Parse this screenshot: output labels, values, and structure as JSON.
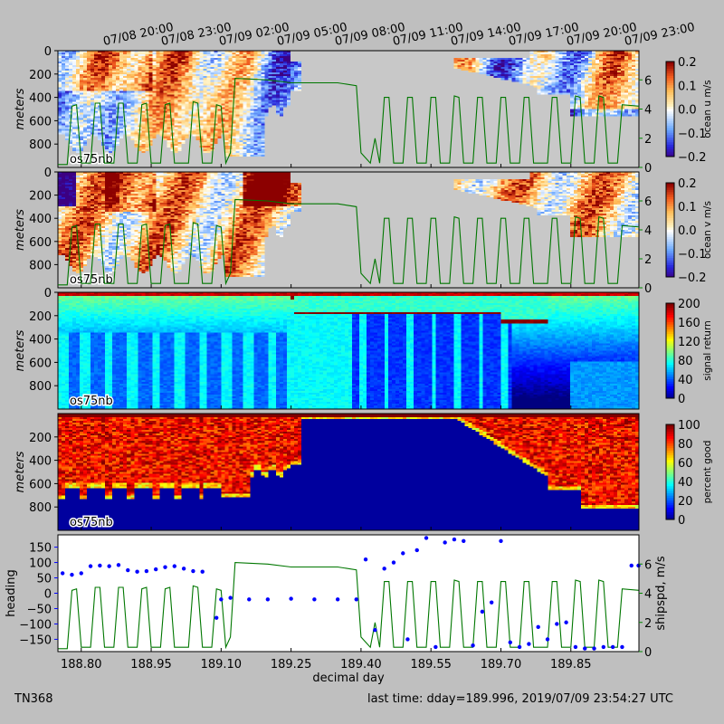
{
  "colors": {
    "figure_bg": "#bfbfbf",
    "missing": "#c8c8c8",
    "ship_speed": "#007700",
    "heading": "#0000ff",
    "heading_axis": "#0000ff",
    "speed_axis": "#008800"
  },
  "footer": {
    "cruise": "TN368",
    "last_time": "last time: dday=189.996,  2019/07/09 23:54:27 UTC"
  },
  "chart_data": [
    {
      "type": "heatmap",
      "variable": "ocean u",
      "ylabel": "meters",
      "colorbar_label": "ocean u m/s",
      "instrument_label": "os75nb",
      "colormap": "red-white-blue diverging",
      "clim": [
        -0.2,
        0.2
      ],
      "colorbar_ticks": [
        "0.2",
        "0.1",
        "0.0",
        "−0.1",
        "−0.2"
      ],
      "ylim": [
        1000,
        0
      ],
      "yticks": [
        0,
        200,
        400,
        600,
        800
      ],
      "right_axis": {
        "quantity": "ship speed",
        "ylim": [
          0,
          8
        ],
        "ticks": [
          0,
          2,
          4,
          6
        ]
      },
      "top_axis_labels": [
        "07/08 20:00",
        "07/08 23:00",
        "07/09 02:00",
        "07/09 05:00",
        "07/09 08:00",
        "07/09 11:00",
        "07/09 14:00",
        "07/09 17:00",
        "07/09 20:00",
        "07/09 23:00"
      ],
      "x_range": [
        188.75,
        189.996
      ]
    },
    {
      "type": "heatmap",
      "variable": "ocean v",
      "ylabel": "meters",
      "colorbar_label": "ocean v m/s",
      "instrument_label": "os75nb",
      "colormap": "red-white-blue diverging",
      "clim": [
        -0.2,
        0.2
      ],
      "colorbar_ticks": [
        "0.2",
        "0.1",
        "0.0",
        "−0.1",
        "−0.2"
      ],
      "ylim": [
        1000,
        0
      ],
      "yticks": [
        0,
        200,
        400,
        600,
        800
      ],
      "right_axis": {
        "quantity": "ship speed",
        "ylim": [
          0,
          8
        ],
        "ticks": [
          0,
          2,
          4,
          6
        ]
      },
      "x_range": [
        188.75,
        189.996
      ]
    },
    {
      "type": "heatmap",
      "variable": "signal return",
      "ylabel": "meters",
      "colorbar_label": "signal return",
      "instrument_label": "os75nb",
      "colormap": "jet",
      "clim": [
        0,
        200
      ],
      "colorbar_ticks": [
        "200",
        "160",
        "120",
        "80",
        "40",
        "0"
      ],
      "ylim": [
        1000,
        0
      ],
      "yticks": [
        0,
        200,
        400,
        600,
        800
      ],
      "x_range": [
        188.75,
        189.996
      ]
    },
    {
      "type": "heatmap",
      "variable": "percent good",
      "ylabel": "meters",
      "colorbar_label": "percent good",
      "instrument_label": "os75nb",
      "colormap": "jet",
      "clim": [
        0,
        100
      ],
      "colorbar_ticks": [
        "100",
        "80",
        "60",
        "40",
        "20",
        "0"
      ],
      "ylim": [
        1000,
        0
      ],
      "yticks": [
        200,
        400,
        600,
        800
      ],
      "x_range": [
        188.75,
        189.996
      ]
    },
    {
      "type": "scatter",
      "xlabel": "decimal day",
      "ylabel": "heading",
      "right_ylabel": "shipspd, m/s",
      "xlim": [
        188.75,
        189.996
      ],
      "xticks": [
        "188.80",
        "188.95",
        "189.10",
        "189.25",
        "189.40",
        "189.55",
        "189.70",
        "189.85"
      ],
      "ylim": [
        -190,
        190
      ],
      "yticks": [
        "150",
        "100",
        "50",
        "0",
        "−50",
        "−100",
        "−150"
      ],
      "right_ylim": [
        0,
        8
      ],
      "right_yticks": [
        "0",
        "2",
        "4",
        "6"
      ],
      "series": [
        {
          "kind": "scatter",
          "points": [
            [
              188.76,
              65
            ],
            [
              188.78,
              60
            ],
            [
              188.8,
              65
            ],
            [
              188.82,
              88
            ],
            [
              188.84,
              90
            ],
            [
              188.86,
              88
            ],
            [
              188.88,
              92
            ],
            [
              188.9,
              75
            ],
            [
              188.92,
              70
            ],
            [
              188.94,
              72
            ],
            [
              188.96,
              78
            ],
            [
              188.98,
              85
            ],
            [
              189.0,
              88
            ],
            [
              189.02,
              80
            ],
            [
              189.04,
              72
            ],
            [
              189.06,
              70
            ],
            [
              189.09,
              -80
            ],
            [
              189.1,
              -20
            ],
            [
              189.12,
              -15
            ],
            [
              189.16,
              -20
            ],
            [
              189.2,
              -20
            ],
            [
              189.25,
              -18
            ],
            [
              189.3,
              -20
            ],
            [
              189.35,
              -20
            ],
            [
              189.39,
              -20
            ],
            [
              189.41,
              110
            ],
            [
              189.43,
              -120
            ],
            [
              189.45,
              80
            ],
            [
              189.47,
              100
            ],
            [
              189.49,
              130
            ],
            [
              189.5,
              -150
            ],
            [
              189.52,
              140
            ],
            [
              189.54,
              180
            ],
            [
              189.56,
              -175
            ],
            [
              189.58,
              165
            ],
            [
              189.6,
              175
            ],
            [
              189.62,
              170
            ],
            [
              189.64,
              -170
            ],
            [
              189.66,
              -60
            ],
            [
              189.68,
              -30
            ],
            [
              189.7,
              170
            ],
            [
              189.72,
              -160
            ],
            [
              189.74,
              -175
            ],
            [
              189.76,
              -165
            ],
            [
              189.78,
              -110
            ],
            [
              189.8,
              -150
            ],
            [
              189.82,
              -100
            ],
            [
              189.84,
              -95
            ],
            [
              189.86,
              -175
            ],
            [
              189.88,
              -180
            ],
            [
              189.9,
              -180
            ],
            [
              189.92,
              -175
            ],
            [
              189.94,
              -175
            ],
            [
              189.96,
              -175
            ],
            [
              189.98,
              90
            ],
            [
              189.995,
              90
            ]
          ]
        },
        {
          "kind": "line",
          "axis": "right",
          "points": [
            [
              188.75,
              0.2
            ],
            [
              188.77,
              0.2
            ],
            [
              188.78,
              4.2
            ],
            [
              188.79,
              4.3
            ],
            [
              188.8,
              0.3
            ],
            [
              188.82,
              0.3
            ],
            [
              188.83,
              4.4
            ],
            [
              188.84,
              4.4
            ],
            [
              188.85,
              0.3
            ],
            [
              188.87,
              0.3
            ],
            [
              188.88,
              4.4
            ],
            [
              188.89,
              4.4
            ],
            [
              188.9,
              0.3
            ],
            [
              188.92,
              0.3
            ],
            [
              188.93,
              4.3
            ],
            [
              188.94,
              4.4
            ],
            [
              188.95,
              0.3
            ],
            [
              188.97,
              0.3
            ],
            [
              188.98,
              4.3
            ],
            [
              188.99,
              4.4
            ],
            [
              189.0,
              0.3
            ],
            [
              189.03,
              0.3
            ],
            [
              189.04,
              4.5
            ],
            [
              189.05,
              4.4
            ],
            [
              189.06,
              0.3
            ],
            [
              189.08,
              0.3
            ],
            [
              189.09,
              4.3
            ],
            [
              189.1,
              4.2
            ],
            [
              189.11,
              0.3
            ],
            [
              189.12,
              1.0
            ],
            [
              189.13,
              6.1
            ],
            [
              189.2,
              6.0
            ],
            [
              189.25,
              5.8
            ],
            [
              189.3,
              5.8
            ],
            [
              189.35,
              5.8
            ],
            [
              189.39,
              5.6
            ],
            [
              189.4,
              1.0
            ],
            [
              189.42,
              0.3
            ],
            [
              189.43,
              2.0
            ],
            [
              189.44,
              0.3
            ],
            [
              189.45,
              4.8
            ],
            [
              189.46,
              4.8
            ],
            [
              189.47,
              0.3
            ],
            [
              189.49,
              0.3
            ],
            [
              189.5,
              4.8
            ],
            [
              189.51,
              4.8
            ],
            [
              189.52,
              0.3
            ],
            [
              189.54,
              0.3
            ],
            [
              189.55,
              4.8
            ],
            [
              189.56,
              4.8
            ],
            [
              189.57,
              0.3
            ],
            [
              189.59,
              0.3
            ],
            [
              189.6,
              4.9
            ],
            [
              189.61,
              4.8
            ],
            [
              189.62,
              0.3
            ],
            [
              189.64,
              0.3
            ],
            [
              189.65,
              4.8
            ],
            [
              189.66,
              4.8
            ],
            [
              189.67,
              0.3
            ],
            [
              189.69,
              0.3
            ],
            [
              189.7,
              4.8
            ],
            [
              189.71,
              4.8
            ],
            [
              189.72,
              0.3
            ],
            [
              189.74,
              0.3
            ],
            [
              189.75,
              4.8
            ],
            [
              189.76,
              4.8
            ],
            [
              189.77,
              0.3
            ],
            [
              189.8,
              0.3
            ],
            [
              189.81,
              4.8
            ],
            [
              189.82,
              4.8
            ],
            [
              189.83,
              0.3
            ],
            [
              189.85,
              0.3
            ],
            [
              189.86,
              4.9
            ],
            [
              189.87,
              4.8
            ],
            [
              189.88,
              0.3
            ],
            [
              189.9,
              0.3
            ],
            [
              189.91,
              4.9
            ],
            [
              189.92,
              4.8
            ],
            [
              189.93,
              0.3
            ],
            [
              189.95,
              0.3
            ],
            [
              189.96,
              4.3
            ],
            [
              189.996,
              4.2
            ]
          ]
        }
      ]
    }
  ]
}
